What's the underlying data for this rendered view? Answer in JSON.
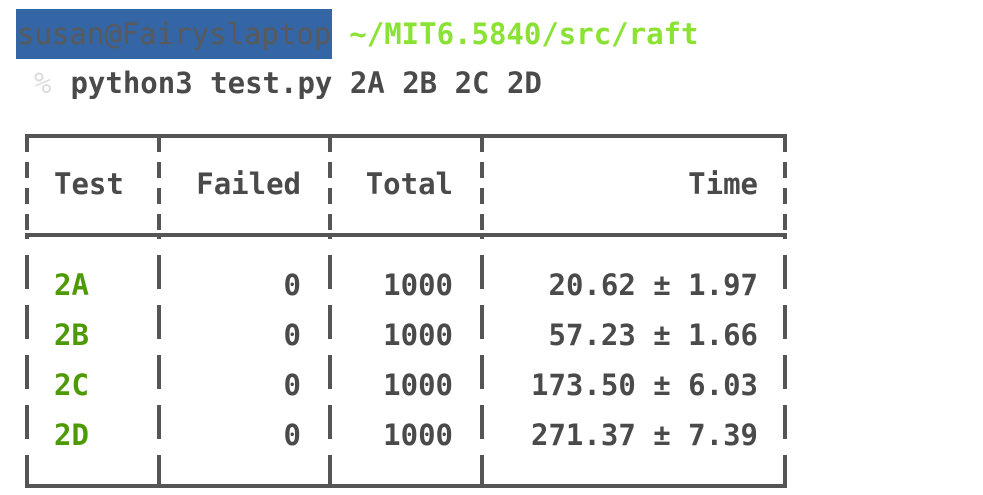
{
  "terminal": {
    "user_host": "susan@Fairyslaptop",
    "cwd": "~/MIT6.5840/src/raft",
    "prompt_symbol": "%",
    "command": "python3 test.py 2A 2B 2C 2D"
  },
  "colors": {
    "user_host_bg": "#3465a4",
    "cwd": "#8ae234",
    "test_name": "#4e9a06",
    "text": "#4a4a4a",
    "border": "#555555"
  },
  "table": {
    "headers": {
      "test": "Test",
      "failed": "Failed",
      "total": "Total",
      "time": "Time"
    },
    "rows": [
      {
        "test": "2A",
        "failed": "0",
        "total": "1000",
        "time": "20.62 ± 1.97"
      },
      {
        "test": "2B",
        "failed": "0",
        "total": "1000",
        "time": "57.23 ± 1.66"
      },
      {
        "test": "2C",
        "failed": "0",
        "total": "1000",
        "time": "173.50 ± 6.03"
      },
      {
        "test": "2D",
        "failed": "0",
        "total": "1000",
        "time": "271.37 ± 7.39"
      }
    ]
  }
}
